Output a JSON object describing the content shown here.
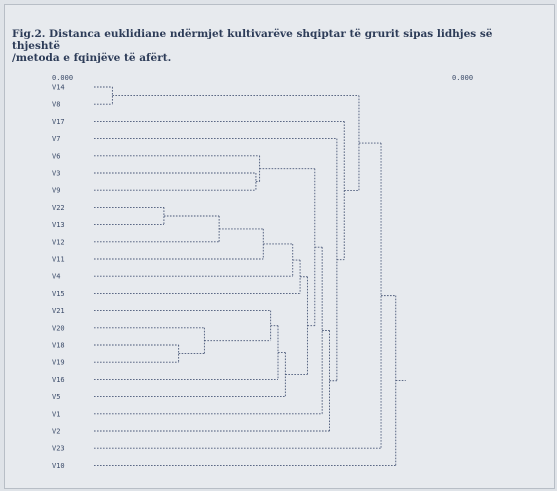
{
  "figure": {
    "caption_line1": "Fig.2. Distanca euklidiane ndërmjet kultivarëve shqiptar të grurit sipas lidhjes së thjeshtë",
    "caption_line2": "/metoda e fqinjëve të afërt.",
    "scale_left": "0.000",
    "scale_right": "0.000"
  },
  "dendrogram": {
    "leaves": [
      "V14",
      "V8",
      "V17",
      "V7",
      "V6",
      "V3",
      "V9",
      "V22",
      "V13",
      "V12",
      "V11",
      "V4",
      "V15",
      "V21",
      "V20",
      "V18",
      "V19",
      "V16",
      "V5",
      "V1",
      "V2",
      "V23",
      "V10"
    ],
    "merges": [
      {
        "a": 0,
        "b": 1,
        "h": 0.05
      },
      {
        "a": 7,
        "b": 8,
        "h": 0.19
      },
      {
        "a": 15,
        "b": 16,
        "h": 0.23
      },
      {
        "a": 14,
        "b": "m2",
        "h": 0.3
      },
      {
        "a": "m1",
        "b": 9,
        "h": 0.34
      },
      {
        "a": 5,
        "b": 6,
        "h": 0.44
      },
      {
        "a": 4,
        "b": "m5",
        "h": 0.45
      },
      {
        "a": "m4",
        "b": 10,
        "h": 0.46
      },
      {
        "a": 13,
        "b": "m3",
        "h": 0.48
      },
      {
        "a": "m8",
        "b": 17,
        "h": 0.5
      },
      {
        "a": "m9",
        "b": 18,
        "h": 0.52
      },
      {
        "a": "m7",
        "b": 11,
        "h": 0.54
      },
      {
        "a": "m11",
        "b": 12,
        "h": 0.56
      },
      {
        "a": "m12",
        "b": "m10",
        "h": 0.58
      },
      {
        "a": "m6",
        "b": "m13",
        "h": 0.6
      },
      {
        "a": "m14",
        "b": 19,
        "h": 0.62
      },
      {
        "a": "m15",
        "b": 20,
        "h": 0.64
      },
      {
        "a": 3,
        "b": "m16",
        "h": 0.66
      },
      {
        "a": 2,
        "b": "m17",
        "h": 0.68
      },
      {
        "a": "m0",
        "b": "m18",
        "h": 0.72
      },
      {
        "a": "m19",
        "b": 21,
        "h": 0.78
      },
      {
        "a": "m20",
        "b": 22,
        "h": 0.82
      }
    ]
  },
  "colors": {
    "line": "#4a5878",
    "text": "#2d3c58"
  }
}
